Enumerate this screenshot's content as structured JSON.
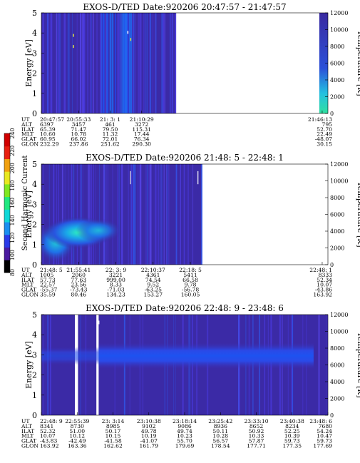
{
  "chart_data": [
    {
      "type": "heatmap",
      "title": "EXOS-D/TED  Date:920206  20:47:57 - 21:47:57",
      "ylabel": "Energy [eV]",
      "y2label": "Temperature [K]",
      "ylim": [
        0,
        5
      ],
      "y2lim": [
        0,
        12000
      ],
      "yticks": [
        "0",
        "1",
        "2",
        "3",
        "4",
        "5"
      ],
      "y2ticks": [
        "0",
        "2000",
        "4000",
        "6000",
        "8000",
        "10000",
        "12000"
      ],
      "data_coverage": [
        [
          0,
          0.47
        ],
        [
          0.97,
          1.0
        ]
      ],
      "orbit_table": {
        "row_labels": [
          "UT",
          "ALT",
          "ILAT",
          "MLT",
          "GLAT",
          "GLON"
        ],
        "columns": [
          {
            "pos": 0.0,
            "values": [
              "20:47:57",
              "6397",
              "65.39",
              "10.60",
              "60.95",
              "232.29"
            ]
          },
          {
            "pos": 0.13,
            "values": [
              "20:55:33",
              "3457",
              "71.47",
              "10.78",
              "66.02",
              "237.86"
            ]
          },
          {
            "pos": 0.24,
            "values": [
              "21: 3: 1",
              "461",
              "79.50",
              "11.32",
              "72.01",
              "251.62"
            ]
          },
          {
            "pos": 0.35,
            "values": [
              "21:10:29",
              "3272",
              "115.31",
              "17.44",
              "76.34",
              "290.30"
            ]
          },
          {
            "pos": 0.98,
            "values": [
              "21:46:13",
              "795",
              "52.70",
              "22.49",
              "-48.07",
              "30.15"
            ]
          }
        ]
      }
    },
    {
      "type": "heatmap",
      "title": "EXOS-D/TED  Date:920206  21:48: 5 - 22:48: 1",
      "ylabel": "Energy [eV]",
      "y2label": "Temperature [K]",
      "ylim": [
        0,
        5
      ],
      "y2lim": [
        0,
        12000
      ],
      "yticks": [
        "0",
        "1",
        "2",
        "3",
        "4",
        "5"
      ],
      "y2ticks": [
        "0",
        "2000",
        "4000",
        "6000",
        "8000",
        "10000",
        "12000"
      ],
      "data_coverage": [
        [
          0,
          0.56
        ]
      ],
      "orbit_table": {
        "row_labels": [
          "UT",
          "ALT",
          "ILAT",
          "MLT",
          "GLAT",
          "GLON"
        ],
        "columns": [
          {
            "pos": 0.0,
            "values": [
              "21:48: 5",
              "1005",
              "57.73",
              "22.57",
              "-55.37",
              "35.59"
            ]
          },
          {
            "pos": 0.13,
            "values": [
              "21:55:41",
              "2060",
              "77.63",
              "23.56",
              "-73.43",
              "80.46"
            ]
          },
          {
            "pos": 0.26,
            "values": [
              "22: 3: 9",
              "3221",
              "999.00",
              "8.33",
              "-71.03",
              "134.23"
            ]
          },
          {
            "pos": 0.39,
            "values": [
              "22:10:37",
              "4361",
              "74.54",
              "9.52",
              "-63.25",
              "153.27"
            ]
          },
          {
            "pos": 0.52,
            "values": [
              "22:18: 5",
              "5411",
              "66.58",
              "9.78",
              "-56.78",
              "160.05"
            ]
          },
          {
            "pos": 0.98,
            "values": [
              "22:48: 1",
              "8333",
              "52.34",
              "10.07",
              "-43.86",
              "163.92"
            ]
          }
        ]
      }
    },
    {
      "type": "heatmap",
      "title": "EXOS-D/TED  Date:920206  22:48: 9 - 23:48: 6",
      "ylabel": "Energy [eV]",
      "y2label": "Temperature [K]",
      "ylim": [
        0,
        5
      ],
      "y2lim": [
        0,
        12000
      ],
      "yticks": [
        "0",
        "1",
        "2",
        "3",
        "4",
        "5"
      ],
      "y2ticks": [
        "0",
        "2000",
        "4000",
        "6000",
        "8000",
        "10000",
        "12000"
      ],
      "data_gaps": [
        [
          0.117,
          0.128
        ],
        [
          0.192,
          0.2
        ]
      ],
      "orbit_table": {
        "row_labels": [
          "UT",
          "ALT",
          "ILAT",
          "MLT",
          "GLAT",
          "GLON"
        ],
        "columns": [
          {
            "pos": 0.0,
            "values": [
              "22:48: 9",
              "8341",
              "52.32",
              "10.07",
              "-43.83",
              "163.92"
            ]
          },
          {
            "pos": 0.125,
            "values": [
              "22:55:39",
              "8730",
              "51.00",
              "10.12",
              "-42.49",
              "163.36"
            ]
          },
          {
            "pos": 0.25,
            "values": [
              "23: 3:14",
              "8985",
              "50.17",
              "10.15",
              "-41.58",
              "162.62"
            ]
          },
          {
            "pos": 0.375,
            "values": [
              "23:10:38",
              "9102",
              "49.78",
              "10.19",
              "-41.07",
              "161.79"
            ]
          },
          {
            "pos": 0.5,
            "values": [
              "23:18:14",
              "9086",
              "49.74",
              "10.23",
              "55.70",
              "179.69"
            ]
          },
          {
            "pos": 0.625,
            "values": [
              "23:25:42",
              "8936",
              "50.11",
              "10.28",
              "56.57",
              "178.54"
            ]
          },
          {
            "pos": 0.75,
            "values": [
              "23:33:10",
              "8652",
              "50.92",
              "10.33",
              "57.87",
              "177.71"
            ]
          },
          {
            "pos": 0.875,
            "values": [
              "23:40:38",
              "8234",
              "52.25",
              "10.39",
              "59.73",
              "177.35"
            ]
          },
          {
            "pos": 1.0,
            "values": [
              "23:48: 6",
              "7680",
              "54.24",
              "10.47",
              "59.73",
              "177.69"
            ]
          }
        ]
      }
    }
  ],
  "colorbar": {
    "label": "Second Harmonic Current",
    "range": [
      80,
      240
    ],
    "ticks": [
      "80",
      "100",
      "120",
      "140",
      "160",
      "180",
      "200",
      "220",
      "240"
    ]
  }
}
